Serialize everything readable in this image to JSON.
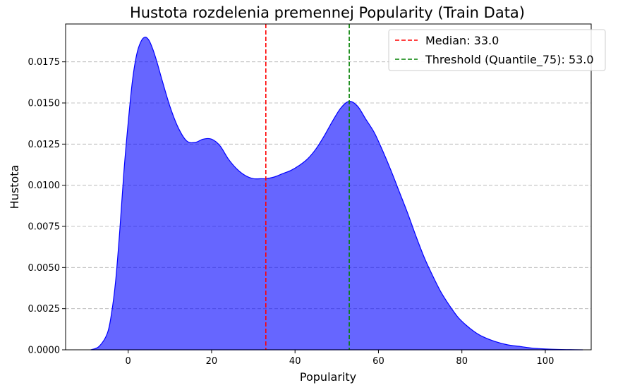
{
  "chart_data": {
    "type": "area",
    "title": "Hustota rozdelenia premennej Popularity (Train Data)",
    "xlabel": "Popularity",
    "ylabel": "Hustota",
    "xlim": [
      -15,
      111
    ],
    "ylim": [
      0,
      0.0198
    ],
    "xticks": [
      0,
      20,
      40,
      60,
      80,
      100
    ],
    "yticks": [
      "0.0000",
      "0.0025",
      "0.0050",
      "0.0075",
      "0.0100",
      "0.0125",
      "0.0150",
      "0.0175"
    ],
    "grid": "y-dashed",
    "legend_position": "top-right",
    "density": {
      "color": "#0000ff",
      "x": [
        -9,
        -7,
        -5,
        -4,
        -3,
        -2,
        -1,
        0,
        1,
        2,
        3,
        4,
        5,
        6,
        7,
        8,
        10,
        12,
        14,
        16,
        18,
        20,
        22,
        24,
        26,
        28,
        30,
        32,
        33,
        35,
        37,
        39,
        41,
        43,
        45,
        47,
        49,
        51,
        53,
        55,
        57,
        59,
        61,
        63,
        65,
        67,
        69,
        71,
        73,
        75,
        77,
        79,
        81,
        83,
        85,
        88,
        91,
        94,
        97,
        100,
        103,
        106,
        109
      ],
      "y": [
        0,
        0.0002,
        0.001,
        0.0022,
        0.0042,
        0.0073,
        0.0109,
        0.0138,
        0.0163,
        0.0179,
        0.0187,
        0.019,
        0.0188,
        0.0182,
        0.0174,
        0.0165,
        0.0148,
        0.0135,
        0.0127,
        0.0126,
        0.0128,
        0.0128,
        0.0124,
        0.0116,
        0.011,
        0.0106,
        0.0104,
        0.0104,
        0.0104,
        0.0105,
        0.0107,
        0.0109,
        0.0112,
        0.0116,
        0.0122,
        0.013,
        0.0139,
        0.0147,
        0.0151,
        0.0148,
        0.014,
        0.0132,
        0.0121,
        0.0109,
        0.0096,
        0.0083,
        0.0069,
        0.0056,
        0.0045,
        0.0035,
        0.0027,
        0.002,
        0.0015,
        0.0011,
        0.0008,
        0.0005,
        0.0003,
        0.0002,
        0.0001,
        5e-05,
        2e-05,
        1e-05,
        0
      ]
    },
    "lines": [
      {
        "label": "Median: 33.0",
        "x": 33.0,
        "color": "#ff0000"
      },
      {
        "label": "Threshold (Quantile_75): 53.0",
        "x": 53.0,
        "color": "#008000"
      }
    ]
  }
}
